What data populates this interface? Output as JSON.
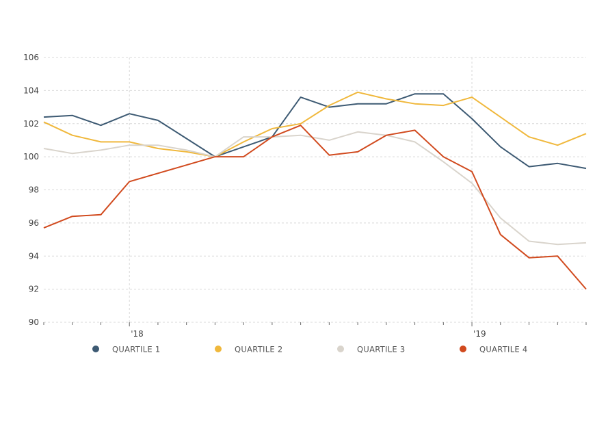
{
  "chart_data": {
    "type": "line",
    "title": "",
    "xlabel": "",
    "ylabel": "",
    "ylim": [
      90,
      106
    ],
    "y_ticks": [
      90,
      92,
      94,
      96,
      98,
      100,
      102,
      104,
      106
    ],
    "x_tick_labels": [
      {
        "label": "'18",
        "index": 3
      },
      {
        "label": "'19",
        "index": 15
      }
    ],
    "grid": true,
    "legend_position": "bottom",
    "series": [
      {
        "name": "QUARTILE 1",
        "color": "#3d5a73",
        "values": [
          102.4,
          102.5,
          101.9,
          102.6,
          102.2,
          101.1,
          100.0,
          100.6,
          101.2,
          103.6,
          103.0,
          103.2,
          103.2,
          103.8,
          103.8,
          102.3,
          100.6,
          99.4,
          99.6,
          99.3
        ]
      },
      {
        "name": "QUARTILE 2",
        "color": "#f0b83c",
        "values": [
          102.1,
          101.3,
          100.9,
          100.9,
          100.5,
          100.3,
          100.0,
          100.9,
          101.7,
          102.0,
          103.1,
          103.9,
          103.5,
          103.2,
          103.1,
          103.6,
          102.4,
          101.2,
          100.7,
          101.4
        ]
      },
      {
        "name": "QUARTILE 3",
        "color": "#d9d4cc",
        "values": [
          100.5,
          100.2,
          100.4,
          100.7,
          100.7,
          100.4,
          100.0,
          101.2,
          101.2,
          101.3,
          101.0,
          101.5,
          101.3,
          100.9,
          99.7,
          98.4,
          96.3,
          94.9,
          94.7,
          94.8
        ]
      },
      {
        "name": "QUARTILE 4",
        "color": "#d14a1e",
        "values": [
          95.7,
          96.4,
          96.5,
          98.5,
          99.0,
          99.5,
          100.0,
          100.0,
          101.2,
          101.9,
          100.1,
          100.3,
          101.3,
          101.6,
          100.0,
          99.1,
          95.3,
          93.9,
          94.0,
          92.0
        ]
      }
    ]
  }
}
